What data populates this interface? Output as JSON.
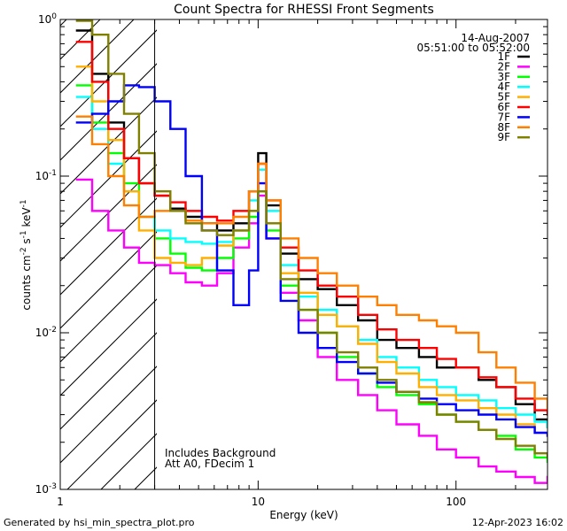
{
  "chart_data": {
    "type": "line",
    "title": "Count Spectra for RHESSI Front Segments",
    "xlabel": "Energy (keV)",
    "ylabel": "counts cm-2 s-1 keV-1",
    "xscale": "log",
    "yscale": "log",
    "xlim": [
      1,
      290
    ],
    "ylim": [
      0.001,
      1.0
    ],
    "x_tick_labels": [
      "1",
      "10",
      "100"
    ],
    "y_tick_labels": [
      "10^-3",
      "10^-2",
      "10^-1",
      "10^0"
    ],
    "date": "14-Aug-2007",
    "time_range": "05:51:00 to 05:52:00",
    "annotations": [
      "Includes Background",
      "Att A0, FDecim 1"
    ],
    "threshold_line_kev": 3.0,
    "legend_position": "top-right",
    "series": [
      {
        "name": "1F",
        "color": "#000000",
        "x": [
          1.2,
          1.45,
          1.75,
          2.1,
          2.5,
          3.0,
          3.6,
          4.3,
          5.2,
          6.2,
          7.5,
          9.0,
          10.0,
          11.0,
          13.0,
          16.0,
          20.0,
          25.0,
          32.0,
          40.0,
          50.0,
          65.0,
          80.0,
          100.0,
          130.0,
          160.0,
          200.0,
          250.0,
          290.0
        ],
        "y": [
          0.85,
          0.45,
          0.22,
          0.13,
          0.09,
          0.075,
          0.062,
          0.055,
          0.05,
          0.045,
          0.05,
          0.08,
          0.14,
          0.065,
          0.032,
          0.022,
          0.019,
          0.015,
          0.012,
          0.009,
          0.008,
          0.007,
          0.006,
          0.006,
          0.005,
          0.0045,
          0.0035,
          0.0028,
          0.0025
        ]
      },
      {
        "name": "2F",
        "color": "#ff00ff",
        "x": [
          1.2,
          1.45,
          1.75,
          2.1,
          2.5,
          3.0,
          3.6,
          4.3,
          5.2,
          6.2,
          7.5,
          9.0,
          10.0,
          11.0,
          13.0,
          16.0,
          20.0,
          25.0,
          32.0,
          40.0,
          50.0,
          65.0,
          80.0,
          100.0,
          130.0,
          160.0,
          200.0,
          250.0,
          290.0
        ],
        "y": [
          0.095,
          0.06,
          0.045,
          0.035,
          0.028,
          0.027,
          0.024,
          0.021,
          0.02,
          0.024,
          0.035,
          0.05,
          0.075,
          0.04,
          0.018,
          0.012,
          0.007,
          0.005,
          0.004,
          0.0032,
          0.0026,
          0.0022,
          0.0018,
          0.0016,
          0.0014,
          0.0013,
          0.0012,
          0.0011,
          0.0012
        ]
      },
      {
        "name": "3F",
        "color": "#00ff00",
        "x": [
          1.2,
          1.45,
          1.75,
          2.1,
          2.5,
          3.0,
          3.6,
          4.3,
          5.2,
          6.2,
          7.5,
          9.0,
          10.0,
          11.0,
          13.0,
          16.0,
          20.0,
          25.0,
          32.0,
          40.0,
          50.0,
          65.0,
          80.0,
          100.0,
          130.0,
          160.0,
          200.0,
          250.0,
          290.0
        ],
        "y": [
          0.38,
          0.22,
          0.14,
          0.09,
          0.055,
          0.04,
          0.032,
          0.026,
          0.025,
          0.03,
          0.04,
          0.055,
          0.08,
          0.045,
          0.02,
          0.014,
          0.01,
          0.007,
          0.0055,
          0.0045,
          0.004,
          0.0035,
          0.003,
          0.0027,
          0.0024,
          0.0022,
          0.0018,
          0.0016,
          0.0015
        ]
      },
      {
        "name": "4F",
        "color": "#00ffff",
        "x": [
          1.2,
          1.45,
          1.75,
          2.1,
          2.5,
          3.0,
          3.6,
          4.3,
          5.2,
          6.2,
          7.5,
          9.0,
          10.0,
          11.0,
          13.0,
          16.0,
          20.0,
          25.0,
          32.0,
          40.0,
          50.0,
          65.0,
          80.0,
          100.0,
          130.0,
          160.0,
          200.0,
          250.0,
          290.0
        ],
        "y": [
          0.32,
          0.2,
          0.12,
          0.08,
          0.055,
          0.045,
          0.04,
          0.038,
          0.037,
          0.038,
          0.045,
          0.07,
          0.11,
          0.06,
          0.027,
          0.017,
          0.014,
          0.011,
          0.009,
          0.007,
          0.006,
          0.005,
          0.0045,
          0.004,
          0.0037,
          0.0033,
          0.003,
          0.0027,
          0.0025
        ]
      },
      {
        "name": "5F",
        "color": "#ffaf00",
        "x": [
          1.2,
          1.45,
          1.75,
          2.1,
          2.5,
          3.0,
          3.6,
          4.3,
          5.2,
          6.2,
          7.5,
          9.0,
          10.0,
          11.0,
          13.0,
          16.0,
          20.0,
          25.0,
          32.0,
          40.0,
          50.0,
          65.0,
          80.0,
          100.0,
          130.0,
          160.0,
          200.0,
          250.0,
          290.0
        ],
        "y": [
          0.5,
          0.3,
          0.17,
          0.08,
          0.045,
          0.03,
          0.028,
          0.027,
          0.03,
          0.036,
          0.045,
          0.06,
          0.09,
          0.05,
          0.024,
          0.018,
          0.013,
          0.011,
          0.0085,
          0.0065,
          0.0055,
          0.0045,
          0.004,
          0.0037,
          0.0033,
          0.003,
          0.0026,
          0.0023,
          0.0022
        ]
      },
      {
        "name": "6F",
        "color": "#ff0000",
        "x": [
          1.2,
          1.45,
          1.75,
          2.1,
          2.5,
          3.0,
          3.6,
          4.3,
          5.2,
          6.2,
          7.5,
          9.0,
          10.0,
          11.0,
          13.0,
          16.0,
          20.0,
          25.0,
          32.0,
          40.0,
          50.0,
          65.0,
          80.0,
          100.0,
          130.0,
          160.0,
          200.0,
          250.0,
          290.0
        ],
        "y": [
          0.72,
          0.4,
          0.2,
          0.13,
          0.09,
          0.075,
          0.068,
          0.06,
          0.055,
          0.052,
          0.06,
          0.08,
          0.12,
          0.07,
          0.035,
          0.025,
          0.02,
          0.017,
          0.013,
          0.0105,
          0.009,
          0.008,
          0.0068,
          0.006,
          0.0052,
          0.0045,
          0.0038,
          0.0032,
          0.003
        ]
      },
      {
        "name": "7F",
        "color": "#0000ff",
        "x": [
          1.2,
          1.45,
          1.75,
          2.1,
          2.5,
          3.0,
          3.6,
          4.3,
          5.2,
          6.2,
          7.5,
          9.0,
          10.0,
          11.0,
          13.0,
          16.0,
          20.0,
          25.0,
          32.0,
          40.0,
          50.0,
          65.0,
          80.0,
          100.0,
          130.0,
          160.0,
          200.0,
          250.0,
          290.0
        ],
        "y": [
          0.22,
          0.25,
          0.3,
          0.38,
          0.37,
          0.3,
          0.2,
          0.1,
          0.045,
          0.025,
          0.015,
          0.025,
          0.09,
          0.04,
          0.016,
          0.01,
          0.008,
          0.0065,
          0.0055,
          0.0048,
          0.0042,
          0.0038,
          0.0035,
          0.0032,
          0.003,
          0.0028,
          0.0025,
          0.0023,
          0.0022
        ]
      },
      {
        "name": "8F",
        "color": "#ff8000",
        "x": [
          1.2,
          1.45,
          1.75,
          2.1,
          2.5,
          3.0,
          3.6,
          4.3,
          5.2,
          6.2,
          7.5,
          9.0,
          10.0,
          11.0,
          13.0,
          16.0,
          20.0,
          25.0,
          32.0,
          40.0,
          50.0,
          65.0,
          80.0,
          100.0,
          130.0,
          160.0,
          200.0,
          250.0,
          290.0
        ],
        "y": [
          0.24,
          0.16,
          0.1,
          0.065,
          0.055,
          0.06,
          0.06,
          0.052,
          0.05,
          0.05,
          0.055,
          0.08,
          0.12,
          0.07,
          0.04,
          0.03,
          0.024,
          0.02,
          0.017,
          0.015,
          0.013,
          0.012,
          0.011,
          0.01,
          0.0075,
          0.006,
          0.0048,
          0.0038,
          0.0033
        ]
      },
      {
        "name": "9F",
        "color": "#808000",
        "x": [
          1.2,
          1.45,
          1.75,
          2.1,
          2.5,
          3.0,
          3.6,
          4.3,
          5.2,
          6.2,
          7.5,
          9.0,
          10.0,
          11.0,
          13.0,
          16.0,
          20.0,
          25.0,
          32.0,
          40.0,
          50.0,
          65.0,
          80.0,
          100.0,
          130.0,
          160.0,
          200.0,
          250.0,
          290.0
        ],
        "y": [
          0.98,
          0.8,
          0.45,
          0.25,
          0.14,
          0.08,
          0.06,
          0.05,
          0.045,
          0.042,
          0.045,
          0.06,
          0.08,
          0.05,
          0.022,
          0.014,
          0.01,
          0.0075,
          0.006,
          0.005,
          0.0042,
          0.0036,
          0.003,
          0.0027,
          0.0024,
          0.0021,
          0.0019,
          0.0017,
          0.0016
        ]
      }
    ]
  },
  "footer": {
    "generated_by": "Generated by hsi_min_spectra_plot.pro",
    "timestamp": "12-Apr-2023 16:02"
  }
}
